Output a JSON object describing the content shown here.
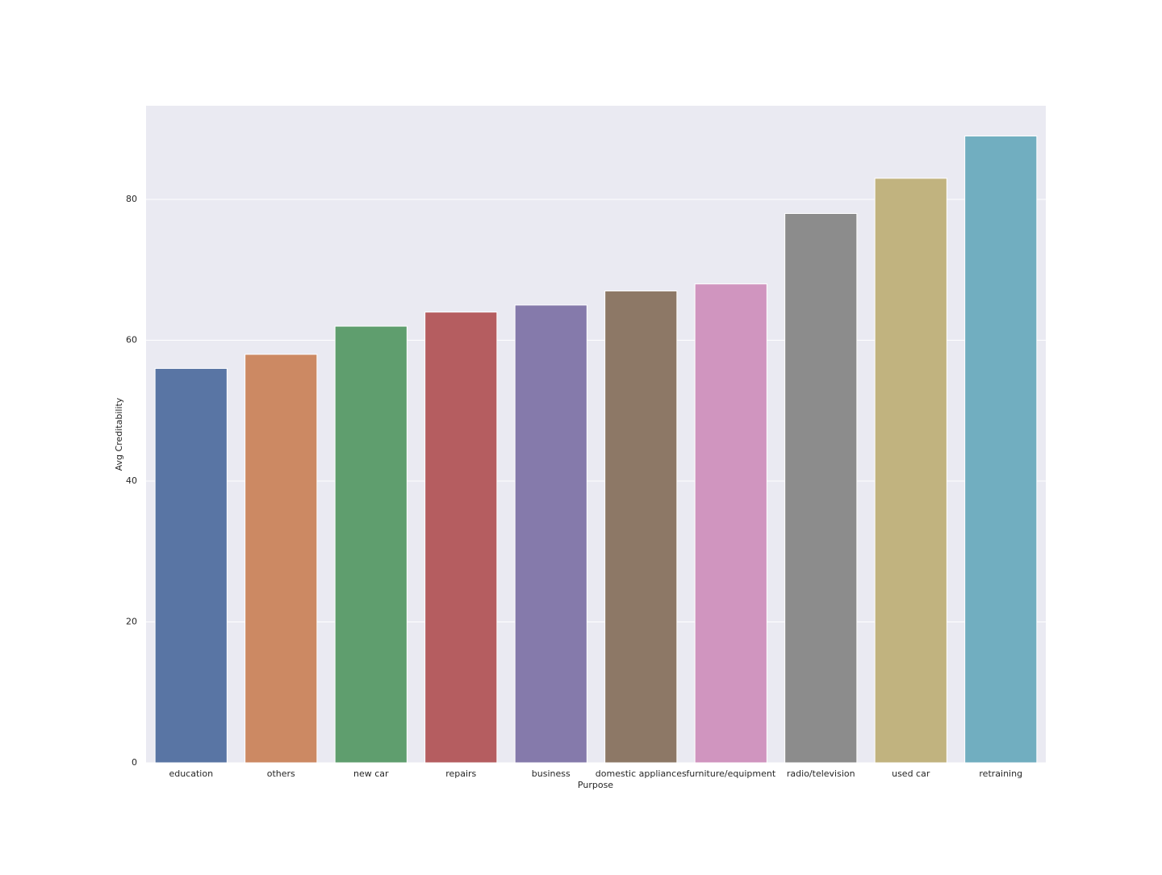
{
  "chart_data": {
    "type": "bar",
    "x_label": "Purpose",
    "y_label": "Avg Creditability",
    "categories": [
      "education",
      "others",
      "new car",
      "repairs",
      "business",
      "domestic appliances",
      "furniture/equipment",
      "radio/television",
      "used car",
      "retraining"
    ],
    "values": [
      56,
      58,
      62,
      64,
      65,
      67,
      68,
      78,
      83,
      89
    ],
    "colors": [
      "#5975a4",
      "#cc8963",
      "#5f9e6e",
      "#b55d60",
      "#857aab",
      "#8d7866",
      "#d095bf",
      "#8c8c8c",
      "#c1b37f",
      "#71aec0"
    ],
    "ylim": [
      0,
      93.3
    ],
    "yticks": [
      0,
      20,
      40,
      60,
      80
    ],
    "grid": true
  }
}
